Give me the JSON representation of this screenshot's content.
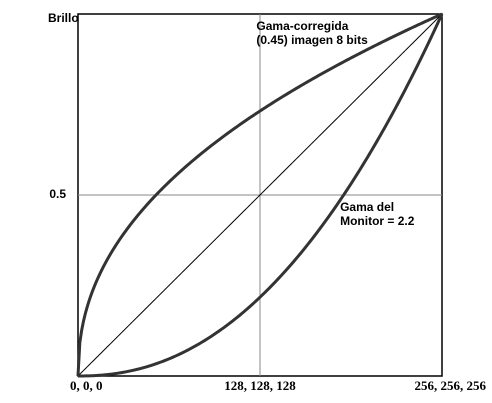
{
  "chart_data": {
    "type": "line",
    "ylabel": "Brillo",
    "xlim": [
      0,
      256
    ],
    "ylim": [
      0,
      1
    ],
    "grid": {
      "x": [
        128
      ],
      "y": [
        0.5
      ]
    },
    "x_ticks": [
      {
        "value": 0,
        "label": "0, 0, 0"
      },
      {
        "value": 128,
        "label": "128, 128, 128"
      },
      {
        "value": 256,
        "label": "256, 256, 256"
      }
    ],
    "y_ticks": [
      {
        "value": 0.5,
        "label": "0.5"
      }
    ],
    "series": [
      {
        "gamma": 0.45
      },
      {
        "gamma": 1.0
      },
      {
        "gamma": 2.2
      }
    ],
    "annotations": [
      {
        "lines": [
          "Gama-corregida",
          "(0.45) imagen 8 bits"
        ],
        "x": 0.49,
        "y": 0.956
      },
      {
        "lines": [
          "Gama del",
          "Monitor = 2.2"
        ],
        "x": 0.72,
        "y": 0.456
      }
    ],
    "colors": {
      "axis": "#000000",
      "grid": "#888888",
      "curve": "#333333",
      "identity": "#000000"
    }
  }
}
